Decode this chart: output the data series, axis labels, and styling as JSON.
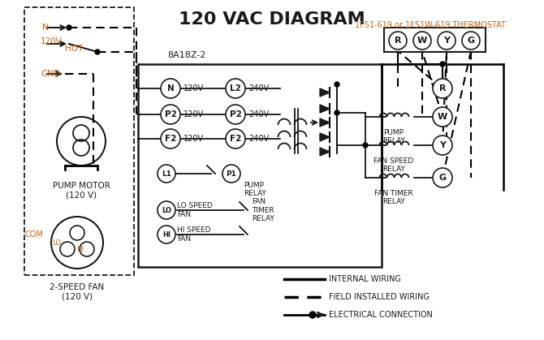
{
  "title": "120 VAC DIAGRAM",
  "title_fontsize": 16,
  "title_color": "#1a1a1a",
  "thermostat_label": "1F51-619 or 1F51W-619 THERMOSTAT",
  "thermostat_label_color": "#c8600a",
  "controller_label": "8A18Z-2",
  "thermostat_terminals": [
    "R",
    "W",
    "Y",
    "G"
  ],
  "controller_left_terminals": [
    "N",
    "P2",
    "F2"
  ],
  "controller_left_voltages": [
    "120V",
    "120V",
    "120V"
  ],
  "controller_right_terminals": [
    "L2",
    "P2",
    "F2"
  ],
  "controller_right_voltages": [
    "240V",
    "240V",
    "240V"
  ],
  "relay_terminals": [
    "R",
    "W",
    "Y",
    "G"
  ],
  "relay_labels": [
    "",
    "PUMP\nRELAY",
    "FAN SPEED\nRELAY",
    "FAN TIMER\nRELAY"
  ],
  "pump_motor_label": "PUMP MOTOR\n(120 V)",
  "fan_label": "2-SPEED FAN\n(120 V)",
  "legend_internal": "INTERNAL WIRING",
  "legend_field": "FIELD INSTALLED WIRING",
  "legend_electrical": "ELECTRICAL CONNECTION",
  "label_color": "#c8600a",
  "line_color": "#1a1a1a",
  "background_color": "#ffffff"
}
